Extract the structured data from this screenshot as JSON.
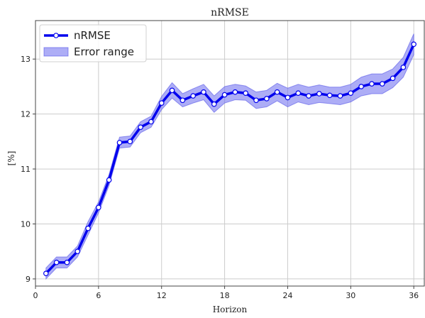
{
  "chart_data": {
    "type": "line",
    "title": "nRMSE",
    "xlabel": "Horizon",
    "ylabel": "[%]",
    "xlim": [
      0,
      37
    ],
    "ylim": [
      8.87,
      13.7
    ],
    "xticks": [
      0,
      6,
      12,
      18,
      24,
      30,
      36
    ],
    "yticks": [
      9,
      10,
      11,
      12,
      13
    ],
    "grid": true,
    "legend_position": "top-left",
    "colors": {
      "line": "#0000ee",
      "band": "#7777f0",
      "band_edge": "#5555e8",
      "marker_fill": "#ffffff",
      "grid": "#cccccc",
      "axes": "#444444"
    },
    "series": [
      {
        "name": "nRMSE",
        "x": [
          1,
          2,
          3,
          4,
          5,
          6,
          7,
          8,
          9,
          10,
          11,
          12,
          13,
          14,
          15,
          16,
          17,
          18,
          19,
          20,
          21,
          22,
          23,
          24,
          25,
          26,
          27,
          28,
          29,
          30,
          31,
          32,
          33,
          34,
          35,
          36
        ],
        "y": [
          9.1,
          9.3,
          9.3,
          9.5,
          9.92,
          10.3,
          10.8,
          11.48,
          11.5,
          11.76,
          11.86,
          12.2,
          12.43,
          12.25,
          12.33,
          12.4,
          12.18,
          12.35,
          12.4,
          12.38,
          12.25,
          12.28,
          12.4,
          12.3,
          12.38,
          12.33,
          12.37,
          12.34,
          12.33,
          12.38,
          12.5,
          12.55,
          12.55,
          12.65,
          12.85,
          13.27
        ]
      },
      {
        "name": "Error range",
        "x": [
          1,
          2,
          3,
          4,
          5,
          6,
          7,
          8,
          9,
          10,
          11,
          12,
          13,
          14,
          15,
          16,
          17,
          18,
          19,
          20,
          21,
          22,
          23,
          24,
          25,
          26,
          27,
          28,
          29,
          30,
          31,
          32,
          33,
          34,
          35,
          36
        ],
        "lower": [
          9.0,
          9.2,
          9.2,
          9.4,
          9.8,
          10.2,
          10.7,
          11.38,
          11.4,
          11.66,
          11.76,
          12.08,
          12.29,
          12.13,
          12.2,
          12.26,
          12.03,
          12.2,
          12.26,
          12.25,
          12.1,
          12.13,
          12.24,
          12.13,
          12.22,
          12.17,
          12.21,
          12.19,
          12.17,
          12.22,
          12.33,
          12.37,
          12.37,
          12.48,
          12.67,
          13.08
        ],
        "upper": [
          9.2,
          9.4,
          9.4,
          9.6,
          10.04,
          10.4,
          10.9,
          11.58,
          11.6,
          11.86,
          11.96,
          12.32,
          12.57,
          12.37,
          12.46,
          12.54,
          12.33,
          12.5,
          12.54,
          12.51,
          12.4,
          12.43,
          12.56,
          12.47,
          12.54,
          12.49,
          12.53,
          12.49,
          12.49,
          12.54,
          12.67,
          12.73,
          12.73,
          12.82,
          13.03,
          13.46
        ]
      }
    ]
  }
}
